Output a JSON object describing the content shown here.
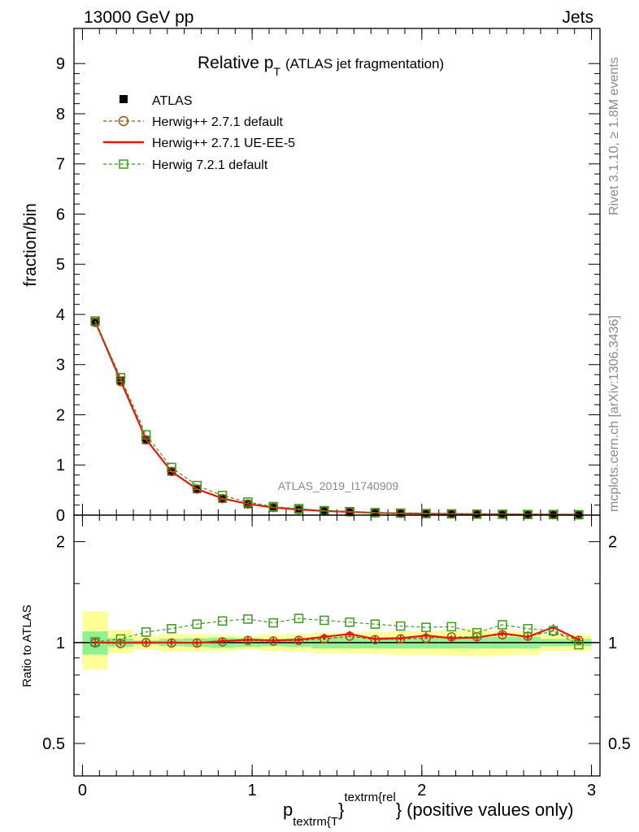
{
  "header": {
    "left": "13000 GeV pp",
    "right": "Jets"
  },
  "side_labels": {
    "rivet": "Rivet 3.1.10, ≥ 1.8M events",
    "mcplots": "mcplots.cern.ch [arXiv:1306.3436]"
  },
  "colors": {
    "atlas": "#000000",
    "herwig_default": "#a0520a",
    "herwig_ue": "#e8150a",
    "herwig72": "#3c9a1e",
    "band_inner": "#92f092",
    "band_outer": "#ffff99"
  },
  "chart_data": [
    {
      "type": "line",
      "panel": "main",
      "title": "Relative p",
      "title_sub": "T",
      "title_note": "(ATLAS jet fragmentation)",
      "ylabel": "fraction/bin",
      "analysis_label": "ATLAS_2019_I1740909",
      "xlim": [
        -0.05,
        3.05
      ],
      "ylim": [
        0,
        9.7
      ],
      "yticks": [
        0,
        1,
        2,
        3,
        4,
        5,
        6,
        7,
        8,
        9
      ],
      "x": [
        0.075,
        0.225,
        0.375,
        0.525,
        0.675,
        0.825,
        0.975,
        1.125,
        1.275,
        1.425,
        1.575,
        1.725,
        1.875,
        2.025,
        2.175,
        2.325,
        2.475,
        2.625,
        2.775,
        2.925
      ],
      "series": [
        {
          "name": "ATLAS",
          "style": "data",
          "values": [
            3.85,
            2.68,
            1.5,
            0.87,
            0.52,
            0.33,
            0.22,
            0.15,
            0.11,
            0.08,
            0.06,
            0.045,
            0.035,
            0.028,
            0.022,
            0.018,
            0.015,
            0.012,
            0.01,
            0.008
          ]
        },
        {
          "name": "Herwig++ 2.7.1 default",
          "style": "circle-dashed",
          "values": [
            3.84,
            2.66,
            1.5,
            0.87,
            0.52,
            0.33,
            0.223,
            0.152,
            0.112,
            0.082,
            0.063,
            0.046,
            0.036,
            0.029,
            0.023,
            0.019,
            0.016,
            0.0125,
            0.011,
            0.008
          ]
        },
        {
          "name": "Herwig++ 2.7.1 UE-EE-5",
          "style": "solid",
          "values": [
            3.86,
            2.68,
            1.51,
            0.87,
            0.52,
            0.334,
            0.224,
            0.152,
            0.112,
            0.082,
            0.064,
            0.046,
            0.036,
            0.029,
            0.023,
            0.019,
            0.016,
            0.0125,
            0.011,
            0.008
          ]
        },
        {
          "name": "Herwig 7.2.1 default",
          "style": "square-dashed",
          "values": [
            3.87,
            2.74,
            1.6,
            0.95,
            0.59,
            0.39,
            0.26,
            0.17,
            0.13,
            0.09,
            0.07,
            0.05,
            0.04,
            0.031,
            0.025,
            0.019,
            0.017,
            0.013,
            0.011,
            0.008
          ]
        }
      ],
      "legend": {
        "position": "top-left"
      }
    },
    {
      "type": "line",
      "panel": "ratio",
      "ylabel": "Ratio to ATLAS",
      "xlabel": "p",
      "xlabel_sub": "textrm{T",
      "xlabel_sup": "textrm{rel",
      "xlabel_brace1": "}",
      "xlabel_brace2": "}",
      "xlabel_suffix": "(positive values only)",
      "log_y": true,
      "ylim": [
        0.4,
        2.4
      ],
      "yticks": [
        {
          "value": 0.5,
          "label": "0.5"
        },
        {
          "value": 1,
          "label": "1"
        },
        {
          "value": 2,
          "label": "2"
        }
      ],
      "xlim": [
        -0.05,
        3.05
      ],
      "xticks": [
        {
          "value": 0,
          "label": "0"
        },
        {
          "value": 1,
          "label": "1"
        },
        {
          "value": 2,
          "label": "2"
        },
        {
          "value": 3,
          "label": "3"
        }
      ],
      "bins": [
        [
          0.0,
          0.15
        ],
        [
          0.15,
          0.3
        ],
        [
          0.3,
          0.45
        ],
        [
          0.45,
          0.6
        ],
        [
          0.6,
          0.75
        ],
        [
          0.75,
          0.9
        ],
        [
          0.9,
          1.05
        ],
        [
          1.05,
          1.2
        ],
        [
          1.2,
          1.35
        ],
        [
          1.35,
          1.5
        ],
        [
          1.5,
          1.65
        ],
        [
          1.65,
          1.8
        ],
        [
          1.8,
          1.95
        ],
        [
          1.95,
          2.1
        ],
        [
          2.1,
          2.25
        ],
        [
          2.25,
          2.4
        ],
        [
          2.4,
          2.55
        ],
        [
          2.55,
          2.7
        ],
        [
          2.7,
          2.85
        ],
        [
          2.85,
          3.0
        ]
      ],
      "band_inner": [
        [
          0.92,
          1.08
        ],
        [
          0.97,
          1.03
        ],
        [
          0.985,
          1.015
        ],
        [
          0.975,
          1.025
        ],
        [
          0.97,
          1.03
        ],
        [
          0.965,
          1.035
        ],
        [
          0.97,
          1.03
        ],
        [
          0.975,
          1.025
        ],
        [
          0.97,
          1.03
        ],
        [
          0.96,
          1.04
        ],
        [
          0.96,
          1.04
        ],
        [
          0.96,
          1.04
        ],
        [
          0.96,
          1.04
        ],
        [
          0.96,
          1.04
        ],
        [
          0.96,
          1.04
        ],
        [
          0.96,
          1.04
        ],
        [
          0.96,
          1.04
        ],
        [
          0.96,
          1.04
        ],
        [
          0.975,
          1.025
        ],
        [
          0.975,
          1.025
        ]
      ],
      "band_outer": [
        [
          0.83,
          1.24
        ],
        [
          0.93,
          1.09
        ],
        [
          0.955,
          1.045
        ],
        [
          0.94,
          1.06
        ],
        [
          0.94,
          1.06
        ],
        [
          0.945,
          1.055
        ],
        [
          0.955,
          1.045
        ],
        [
          0.945,
          1.055
        ],
        [
          0.94,
          1.06
        ],
        [
          0.93,
          1.07
        ],
        [
          0.93,
          1.07
        ],
        [
          0.925,
          1.075
        ],
        [
          0.92,
          1.08
        ],
        [
          0.92,
          1.08
        ],
        [
          0.915,
          1.085
        ],
        [
          0.91,
          1.09
        ],
        [
          0.915,
          1.085
        ],
        [
          0.92,
          1.08
        ],
        [
          0.945,
          1.055
        ],
        [
          0.945,
          1.055
        ]
      ],
      "series": [
        {
          "name": "Herwig++ 2.7.1 default",
          "style": "circle-dashed",
          "values": [
            0.998,
            0.993,
            1.0,
            0.997,
            0.997,
            1.005,
            1.015,
            1.01,
            1.015,
            1.025,
            1.045,
            1.02,
            1.025,
            1.03,
            1.04,
            1.04,
            1.055,
            1.045,
            1.08,
            1.015
          ]
        },
        {
          "name": "Herwig++ 2.7.1 UE-EE-5",
          "style": "solid",
          "values": [
            1.0,
            1.0,
            1.0,
            1.0,
            0.998,
            1.01,
            1.02,
            1.015,
            1.02,
            1.04,
            1.06,
            1.025,
            1.03,
            1.05,
            1.03,
            1.035,
            1.065,
            1.04,
            1.11,
            1.02
          ]
        },
        {
          "name": "Herwig 7.2.1 default",
          "style": "square-dashed",
          "values": [
            1.005,
            1.025,
            1.075,
            1.1,
            1.135,
            1.16,
            1.175,
            1.145,
            1.18,
            1.165,
            1.15,
            1.135,
            1.12,
            1.11,
            1.115,
            1.07,
            1.13,
            1.1,
            1.085,
            0.985
          ]
        }
      ]
    }
  ]
}
